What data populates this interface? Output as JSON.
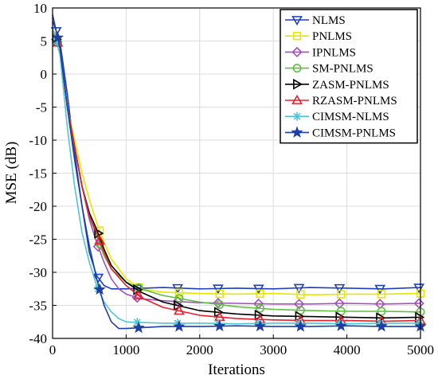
{
  "chart_data": {
    "type": "line",
    "title": "",
    "xlabel": "Iterations",
    "ylabel": "MSE (dB)",
    "xlim": [
      0,
      5000
    ],
    "ylim": [
      -40,
      10
    ],
    "xticks": [
      0,
      1000,
      2000,
      3000,
      4000,
      5000
    ],
    "yticks": [
      10,
      5,
      0,
      -5,
      -10,
      -15,
      -20,
      -25,
      -30,
      -35,
      -40
    ],
    "grid": true,
    "legend_position": "top-right",
    "series": [
      {
        "name": "NLMS",
        "color": "#1f3fbf",
        "marker": "triangle-down",
        "points": [
          [
            0,
            8
          ],
          [
            100,
            5
          ],
          [
            200,
            -3
          ],
          [
            300,
            -12
          ],
          [
            400,
            -20
          ],
          [
            500,
            -27
          ],
          [
            600,
            -30.5
          ],
          [
            700,
            -32
          ],
          [
            800,
            -32.5
          ],
          [
            1000,
            -32.5
          ],
          [
            1500,
            -32.3
          ],
          [
            2000,
            -32.5
          ],
          [
            2500,
            -32.4
          ],
          [
            3000,
            -32.5
          ],
          [
            3500,
            -32.3
          ],
          [
            4000,
            -32.4
          ],
          [
            4500,
            -32.5
          ],
          [
            5000,
            -32.3
          ]
        ]
      },
      {
        "name": "PNLMS",
        "color": "#e6e600",
        "marker": "square",
        "points": [
          [
            0,
            7
          ],
          [
            100,
            4
          ],
          [
            200,
            -5
          ],
          [
            300,
            -10
          ],
          [
            400,
            -15
          ],
          [
            500,
            -19
          ],
          [
            600,
            -22.5
          ],
          [
            700,
            -25.5
          ],
          [
            800,
            -28
          ],
          [
            900,
            -29.5
          ],
          [
            1000,
            -31
          ],
          [
            1200,
            -32.5
          ],
          [
            1500,
            -33
          ],
          [
            2000,
            -33.2
          ],
          [
            2500,
            -33.3
          ],
          [
            3000,
            -33.2
          ],
          [
            3500,
            -33.4
          ],
          [
            4000,
            -33.3
          ],
          [
            4500,
            -33.3
          ],
          [
            5000,
            -33.2
          ]
        ]
      },
      {
        "name": "IPNLMS",
        "color": "#a64dbf",
        "marker": "diamond",
        "points": [
          [
            0,
            6.5
          ],
          [
            100,
            4
          ],
          [
            200,
            -5
          ],
          [
            300,
            -11
          ],
          [
            400,
            -17
          ],
          [
            500,
            -22
          ],
          [
            600,
            -25.5
          ],
          [
            700,
            -28.5
          ],
          [
            800,
            -31
          ],
          [
            900,
            -32.5
          ],
          [
            1000,
            -33.3
          ],
          [
            1200,
            -34
          ],
          [
            1500,
            -34.3
          ],
          [
            2000,
            -34.6
          ],
          [
            2500,
            -34.7
          ],
          [
            3000,
            -34.8
          ],
          [
            3500,
            -34.8
          ],
          [
            4000,
            -34.7
          ],
          [
            4500,
            -34.8
          ],
          [
            5000,
            -34.7
          ]
        ]
      },
      {
        "name": "SM-PNLMS",
        "color": "#5fbf3f",
        "marker": "circle",
        "points": [
          [
            0,
            6.5
          ],
          [
            100,
            4
          ],
          [
            200,
            -5
          ],
          [
            300,
            -11
          ],
          [
            400,
            -17
          ],
          [
            500,
            -21.5
          ],
          [
            600,
            -24.5
          ],
          [
            700,
            -27.5
          ],
          [
            800,
            -29.5
          ],
          [
            1000,
            -31.5
          ],
          [
            1200,
            -32.5
          ],
          [
            1500,
            -33.5
          ],
          [
            2000,
            -34.5
          ],
          [
            2500,
            -35.2
          ],
          [
            3000,
            -35.6
          ],
          [
            3500,
            -35.8
          ],
          [
            4000,
            -35.9
          ],
          [
            4500,
            -35.9
          ],
          [
            5000,
            -36
          ]
        ]
      },
      {
        "name": "ZASM-PNLMS",
        "color": "#000000",
        "marker": "triangle-right",
        "points": [
          [
            0,
            6.5
          ],
          [
            100,
            4
          ],
          [
            200,
            -5
          ],
          [
            300,
            -11
          ],
          [
            400,
            -17
          ],
          [
            500,
            -21
          ],
          [
            600,
            -23.5
          ],
          [
            700,
            -26.5
          ],
          [
            800,
            -29
          ],
          [
            1000,
            -31.5
          ],
          [
            1200,
            -33
          ],
          [
            1500,
            -34.5
          ],
          [
            2000,
            -35.8
          ],
          [
            2500,
            -36.3
          ],
          [
            3000,
            -36.6
          ],
          [
            3500,
            -36.7
          ],
          [
            4000,
            -36.8
          ],
          [
            4500,
            -36.9
          ],
          [
            5000,
            -36.8
          ]
        ]
      },
      {
        "name": "RZASM-PNLMS",
        "color": "#e6202a",
        "marker": "triangle-up",
        "points": [
          [
            0,
            6.5
          ],
          [
            100,
            4
          ],
          [
            200,
            -5
          ],
          [
            300,
            -11
          ],
          [
            400,
            -17
          ],
          [
            500,
            -21.5
          ],
          [
            600,
            -24
          ],
          [
            700,
            -27
          ],
          [
            800,
            -29.5
          ],
          [
            1000,
            -32
          ],
          [
            1200,
            -33.8
          ],
          [
            1500,
            -35.3
          ],
          [
            2000,
            -36.5
          ],
          [
            2500,
            -37
          ],
          [
            3000,
            -37.2
          ],
          [
            3500,
            -37.3
          ],
          [
            4000,
            -37.3
          ],
          [
            4500,
            -37.4
          ],
          [
            5000,
            -37.3
          ]
        ]
      },
      {
        "name": "CIMSM-NLMS",
        "color": "#4fc6d6",
        "marker": "asterisk",
        "points": [
          [
            0,
            7
          ],
          [
            100,
            3
          ],
          [
            200,
            -8
          ],
          [
            300,
            -17
          ],
          [
            400,
            -24
          ],
          [
            500,
            -28.5
          ],
          [
            600,
            -32
          ],
          [
            700,
            -34.5
          ],
          [
            800,
            -36
          ],
          [
            900,
            -37
          ],
          [
            1000,
            -37.5
          ],
          [
            1500,
            -37.7
          ],
          [
            2000,
            -37.7
          ],
          [
            2500,
            -37.8
          ],
          [
            3000,
            -37.7
          ],
          [
            3500,
            -37.7
          ],
          [
            4000,
            -37.8
          ],
          [
            4500,
            -37.7
          ],
          [
            5000,
            -37.7
          ]
        ]
      },
      {
        "name": "CIMSM-PNLMS",
        "color": "#1f3fa6",
        "marker": "star",
        "points": [
          [
            0,
            9
          ],
          [
            100,
            4
          ],
          [
            200,
            -5
          ],
          [
            300,
            -13
          ],
          [
            400,
            -20
          ],
          [
            500,
            -26
          ],
          [
            600,
            -31
          ],
          [
            700,
            -35
          ],
          [
            800,
            -37.5
          ],
          [
            900,
            -38.5
          ],
          [
            1000,
            -38.5
          ],
          [
            1500,
            -38.2
          ],
          [
            2000,
            -38.2
          ],
          [
            2500,
            -38.1
          ],
          [
            3000,
            -38.2
          ],
          [
            3500,
            -38.2
          ],
          [
            4000,
            -38.1
          ],
          [
            4500,
            -38.2
          ],
          [
            5000,
            -38.2
          ]
        ]
      }
    ]
  }
}
